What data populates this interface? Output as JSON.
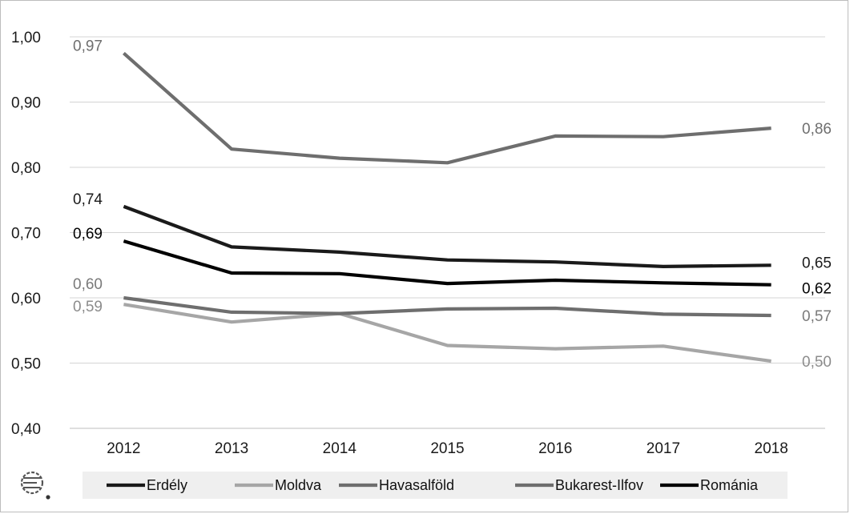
{
  "chart_data": {
    "type": "line",
    "categories": [
      "2012",
      "2013",
      "2014",
      "2015",
      "2016",
      "2017",
      "2018"
    ],
    "y_ticks": [
      "0,40",
      "0,50",
      "0,60",
      "0,70",
      "0,80",
      "0,90",
      "1,00"
    ],
    "ylim": [
      0.4,
      1.0
    ],
    "grid": true,
    "legend_position": "bottom",
    "series": [
      {
        "name": "Erdély",
        "color": "#1a1a1a",
        "values": [
          0.74,
          0.678,
          0.67,
          0.658,
          0.655,
          0.648,
          0.65
        ],
        "start_label": "0,74",
        "end_label": "0,65",
        "label_color": "#1a1a1a"
      },
      {
        "name": "Moldva",
        "color": "#a6a6a6",
        "values": [
          0.59,
          0.563,
          0.576,
          0.527,
          0.522,
          0.526,
          0.503
        ],
        "start_label": "0,59",
        "end_label": "0,50",
        "label_color": "#8c8c8c"
      },
      {
        "name": "Havasalföld",
        "color": "#6e6e6e",
        "values": [
          0.6,
          0.578,
          0.576,
          0.583,
          0.584,
          0.575,
          0.573
        ],
        "start_label": "0,60",
        "end_label": "0,57",
        "label_color": "#7a7a7a"
      },
      {
        "name": "Bukarest-Ilfov",
        "color": "#6e6e6e",
        "values": [
          0.975,
          0.828,
          0.814,
          0.807,
          0.848,
          0.847,
          0.86
        ],
        "start_label": "0,97",
        "end_label": "0,86",
        "label_color": "#6e6e6e"
      },
      {
        "name": "Románia",
        "color": "#000000",
        "values": [
          0.687,
          0.638,
          0.637,
          0.622,
          0.627,
          0.623,
          0.62
        ],
        "start_label": "0,69",
        "end_label": "0,62",
        "label_color": "#000000"
      }
    ]
  },
  "logo": {
    "name": "institute-logo-icon"
  }
}
